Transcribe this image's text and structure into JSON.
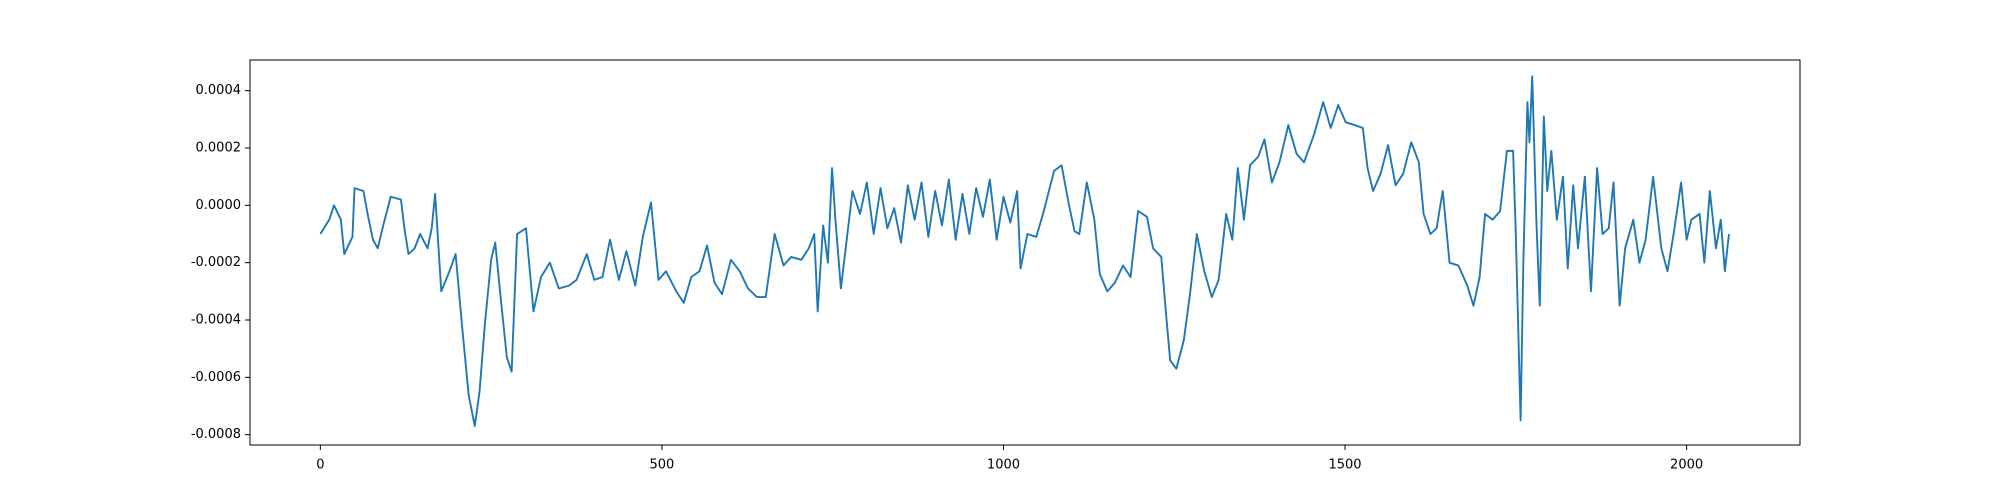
{
  "chart_data": {
    "type": "line",
    "x": [
      0,
      13,
      20,
      30,
      35,
      47,
      50,
      63,
      70,
      77,
      84,
      92,
      103,
      118,
      123,
      129,
      138,
      146,
      157,
      163,
      168,
      177,
      189,
      198,
      207,
      217,
      226,
      233,
      241,
      250,
      256,
      263,
      273,
      280,
      288,
      301,
      312,
      323,
      336,
      349,
      364,
      375,
      390,
      401,
      413,
      424,
      437,
      448,
      461,
      472,
      484,
      495,
      506,
      521,
      532,
      543,
      555,
      566,
      577,
      588,
      601,
      614,
      626,
      639,
      652,
      665,
      678,
      689,
      704,
      715,
      723,
      728,
      736,
      743,
      749,
      754,
      762,
      769,
      779,
      790,
      800,
      810,
      820,
      830,
      840,
      850,
      860,
      870,
      880,
      890,
      900,
      910,
      920,
      930,
      940,
      950,
      960,
      970,
      980,
      990,
      1000,
      1010,
      1020,
      1025,
      1035,
      1048,
      1059,
      1074,
      1085,
      1096,
      1104,
      1111,
      1122,
      1133,
      1141,
      1152,
      1163,
      1175,
      1186,
      1197,
      1210,
      1219,
      1231,
      1238,
      1244,
      1253,
      1264,
      1273,
      1283,
      1294,
      1305,
      1315,
      1326,
      1335,
      1343,
      1352,
      1361,
      1373,
      1382,
      1393,
      1404,
      1417,
      1429,
      1440,
      1455,
      1468,
      1479,
      1490,
      1501,
      1514,
      1526,
      1533,
      1541,
      1552,
      1563,
      1574,
      1585,
      1597,
      1608,
      1615,
      1625,
      1634,
      1643,
      1653,
      1666,
      1679,
      1688,
      1697,
      1705,
      1716,
      1727,
      1737,
      1746,
      1750,
      1757,
      1761,
      1767,
      1770,
      1774,
      1780,
      1785,
      1791,
      1796,
      1802,
      1810,
      1819,
      1826,
      1834,
      1841,
      1851,
      1860,
      1869,
      1877,
      1886,
      1893,
      1902,
      1910,
      1922,
      1931,
      1940,
      1951,
      1963,
      1972,
      1981,
      1992,
      2000,
      2007,
      2019,
      2026,
      2034,
      2043,
      2050,
      2056,
      2062
    ],
    "values": [
      -0.0001,
      -5e-05,
      0,
      -5e-05,
      -0.00017,
      -0.00011,
      6e-05,
      5e-05,
      -4e-05,
      -0.00012,
      -0.00015,
      -7e-05,
      3e-05,
      2e-05,
      -8e-05,
      -0.00017,
      -0.00015,
      -0.0001,
      -0.00015,
      -8e-05,
      4e-05,
      -0.0003,
      -0.00023,
      -0.00017,
      -0.00041,
      -0.00066,
      -0.00077,
      -0.00065,
      -0.00041,
      -0.00019,
      -0.00013,
      -0.0003,
      -0.00053,
      -0.00058,
      -0.0001,
      -8e-05,
      -0.00037,
      -0.00025,
      -0.0002,
      -0.00029,
      -0.00028,
      -0.00026,
      -0.00017,
      -0.00026,
      -0.00025,
      -0.00012,
      -0.00026,
      -0.00016,
      -0.00028,
      -0.00011,
      1e-05,
      -0.00026,
      -0.00023,
      -0.0003,
      -0.00034,
      -0.00025,
      -0.00023,
      -0.00014,
      -0.00027,
      -0.00031,
      -0.00019,
      -0.00023,
      -0.00029,
      -0.00032,
      -0.00032,
      -0.0001,
      -0.00021,
      -0.00018,
      -0.00019,
      -0.00015,
      -0.0001,
      -0.00037,
      -7e-05,
      -0.0002,
      0.00013,
      -5e-05,
      -0.00029,
      -0.00015,
      5e-05,
      -3e-05,
      8e-05,
      -0.0001,
      6e-05,
      -8e-05,
      -1e-05,
      -0.00013,
      7e-05,
      -5e-05,
      8e-05,
      -0.00011,
      5e-05,
      -7e-05,
      9e-05,
      -0.00012,
      4e-05,
      -0.0001,
      6e-05,
      -4e-05,
      9e-05,
      -0.00012,
      3e-05,
      -6e-05,
      5e-05,
      -0.00022,
      -0.0001,
      -0.00011,
      -2e-05,
      0.00012,
      0.00014,
      0,
      -9e-05,
      -0.0001,
      8e-05,
      -5e-05,
      -0.00024,
      -0.0003,
      -0.00027,
      -0.00021,
      -0.00025,
      -2e-05,
      -4e-05,
      -0.00015,
      -0.00018,
      -0.00038,
      -0.00054,
      -0.00057,
      -0.00047,
      -0.00031,
      -0.0001,
      -0.00023,
      -0.00032,
      -0.00026,
      -3e-05,
      -0.00012,
      0.00013,
      -5e-05,
      0.00014,
      0.00017,
      0.00023,
      8e-05,
      0.00015,
      0.00028,
      0.00018,
      0.00015,
      0.00025,
      0.00036,
      0.00027,
      0.00035,
      0.00029,
      0.00028,
      0.00027,
      0.00013,
      5e-05,
      0.00011,
      0.00021,
      7e-05,
      0.00011,
      0.00022,
      0.00015,
      -3e-05,
      -0.0001,
      -8e-05,
      5e-05,
      -0.0002,
      -0.00021,
      -0.00028,
      -0.00035,
      -0.00025,
      -3e-05,
      -5e-05,
      -2e-05,
      0.00019,
      0.00019,
      -0.0001,
      -0.00075,
      -0.0002,
      0.00036,
      0.00022,
      0.00045,
      -5e-05,
      -0.00035,
      0.00031,
      5e-05,
      0.00019,
      -5e-05,
      0.0001,
      -0.00022,
      7e-05,
      -0.00015,
      0.0001,
      -0.0003,
      0.00013,
      -0.0001,
      -8e-05,
      8e-05,
      -0.00035,
      -0.00015,
      -5e-05,
      -0.0002,
      -0.00012,
      0.0001,
      -0.00015,
      -0.00023,
      -0.0001,
      8e-05,
      -0.00012,
      -5e-05,
      -3e-05,
      -0.0002,
      5e-05,
      -0.00015,
      -5e-05,
      -0.00023,
      -0.0001
    ],
    "color": "#1f77b4",
    "xlim": [
      -103,
      2166
    ],
    "xticks": [
      0,
      500,
      1000,
      1500,
      2000
    ],
    "ylim": [
      -0.000836,
      0.000507
    ],
    "yticks": [
      -0.0008,
      -0.0006,
      -0.0004,
      -0.0002,
      {
        "value": 0,
        "label": "0.0000"
      },
      0.0002,
      0.0004
    ]
  }
}
